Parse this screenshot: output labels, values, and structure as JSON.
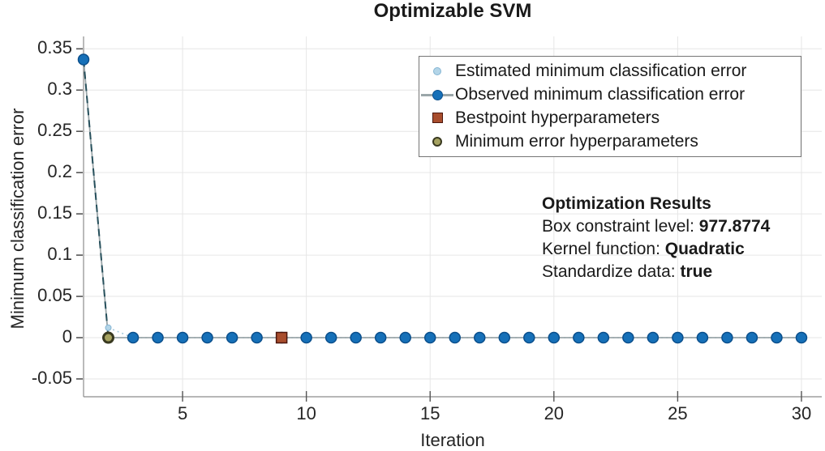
{
  "title": "Optimizable SVM",
  "chart_data": {
    "type": "line",
    "title": "Optimizable SVM",
    "xlabel": "Iteration",
    "ylabel": "Minimum classification error",
    "xlim": [
      1,
      30.82
    ],
    "ylim": [
      -0.0716,
      0.365
    ],
    "grid": true,
    "legend_position": "upper right",
    "x_ticks": [
      5,
      10,
      15,
      20,
      25,
      30
    ],
    "x_tick_labels": [
      "5",
      "10",
      "15",
      "20",
      "25",
      "30"
    ],
    "y_ticks": [
      -0.05,
      0,
      0.05,
      0.1,
      0.15,
      0.2,
      0.25,
      0.3,
      0.35
    ],
    "y_tick_labels": [
      "-0.05",
      "0",
      "0.05",
      "0.1",
      "0.15",
      "0.2",
      "0.25",
      "0.3",
      "0.35"
    ],
    "series": [
      {
        "name": "Estimated minimum classification error",
        "x": [
          2,
          3,
          4,
          5,
          6,
          7,
          8,
          9,
          10,
          11,
          12,
          13,
          14,
          15,
          16,
          17,
          18,
          19,
          20,
          21,
          22,
          23,
          24,
          25,
          26,
          27,
          28,
          29,
          30
        ],
        "y": [
          0.012,
          0,
          0,
          0,
          0,
          0,
          0,
          0,
          0,
          0,
          0,
          0,
          0,
          0,
          0,
          0,
          0,
          0,
          0,
          0,
          0,
          0,
          0,
          0,
          0,
          0,
          0,
          0,
          0
        ]
      },
      {
        "name": "Observed minimum classification error",
        "x": [
          1,
          2,
          3,
          4,
          5,
          6,
          7,
          8,
          9,
          10,
          11,
          12,
          13,
          14,
          15,
          16,
          17,
          18,
          19,
          20,
          21,
          22,
          23,
          24,
          25,
          26,
          27,
          28,
          29,
          30
        ],
        "y": [
          0.337,
          0,
          0,
          0,
          0,
          0,
          0,
          0,
          0,
          0,
          0,
          0,
          0,
          0,
          0,
          0,
          0,
          0,
          0,
          0,
          0,
          0,
          0,
          0,
          0,
          0,
          0,
          0,
          0,
          0
        ]
      },
      {
        "name": "Bestpoint hyperparameters",
        "x": [
          9
        ],
        "y": [
          0
        ]
      },
      {
        "name": "Minimum error hyperparameters",
        "x": [
          2
        ],
        "y": [
          0
        ]
      }
    ]
  },
  "legend": {
    "items": [
      {
        "label": "Estimated minimum classification error"
      },
      {
        "label": "Observed minimum classification error"
      },
      {
        "label": "Bestpoint hyperparameters"
      },
      {
        "label": "Minimum error hyperparameters"
      }
    ]
  },
  "results_box": {
    "title": "Optimization Results",
    "items": [
      {
        "label": "Box constraint level: ",
        "value": "977.8774"
      },
      {
        "label": "Kernel function: ",
        "value": "Quadratic"
      },
      {
        "label": "Standardize data: ",
        "value": "true"
      }
    ]
  },
  "colors": {
    "observed_fill": "#1670b8",
    "observed_edge": "#0b4f8c",
    "estimated_fill": "#b3d5e8",
    "estimated_edge": "#85b5d3",
    "estimated_line": "#a5c9dc",
    "best_fill": "#a84d2d",
    "best_edge": "#4c170e",
    "minerr_fill": "#a5a260",
    "minerr_edge": "#393920",
    "line_gray": "#9ba6a9",
    "dash_dark": "#27505c",
    "grid": "#e6e6e6",
    "axis": "#8c8c8c",
    "tick_text": "#262626"
  }
}
